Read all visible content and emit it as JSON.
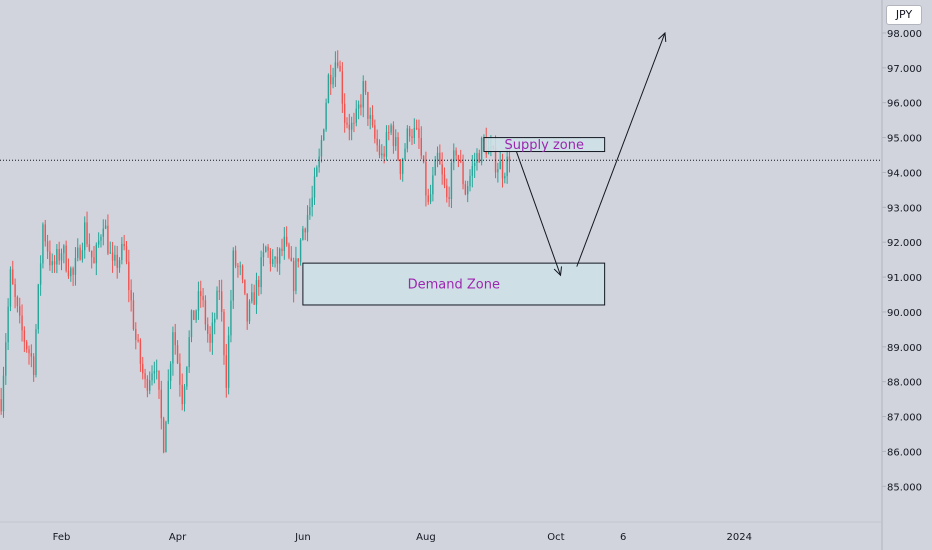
{
  "symbol_badge": "JPY",
  "colors": {
    "background": "#d1d4dc",
    "up_candle": "#26a69a",
    "down_candle": "#ef5350",
    "zone_fill": "#cfe0e8",
    "zone_text": "#9c27b0",
    "axis_text": "#131722",
    "arrow": "#131722"
  },
  "chart_data": {
    "type": "candlestick",
    "y_axis": {
      "min": 84.55,
      "max": 98.2,
      "ticks": [
        "98.000",
        "97.000",
        "96.000",
        "95.000",
        "94.000",
        "93.000",
        "92.000",
        "91.000",
        "90.000",
        "89.000",
        "88.000",
        "87.000",
        "86.000",
        "85.000"
      ],
      "tick_values": [
        98,
        97,
        96,
        95,
        94,
        93,
        92,
        91,
        90,
        89,
        88,
        87,
        86,
        85
      ]
    },
    "x_axis": {
      "labels": [
        "Feb",
        "Apr",
        "Jun",
        "Aug",
        "Oct",
        "6",
        "2024"
      ],
      "label_index": [
        26,
        76,
        130,
        183,
        239,
        268,
        318
      ],
      "total_slots": 380
    },
    "current_price": 94.35,
    "price_path": [
      [
        0,
        87.5
      ],
      [
        4,
        91.0
      ],
      [
        8,
        89.6
      ],
      [
        14,
        88.5
      ],
      [
        18,
        92.5
      ],
      [
        22,
        91.2
      ],
      [
        26,
        91.8
      ],
      [
        31,
        91.0
      ],
      [
        36,
        92.4
      ],
      [
        40,
        91.3
      ],
      [
        44,
        92.7
      ],
      [
        48,
        91.2
      ],
      [
        53,
        91.8
      ],
      [
        58,
        89.2
      ],
      [
        62,
        87.9
      ],
      [
        66,
        88.6
      ],
      [
        70,
        86.3
      ],
      [
        74,
        89.6
      ],
      [
        78,
        87.6
      ],
      [
        82,
        89.7
      ],
      [
        86,
        90.5
      ],
      [
        90,
        89.0
      ],
      [
        94,
        90.7
      ],
      [
        97,
        88.1
      ],
      [
        100,
        91.5
      ],
      [
        103,
        91.1
      ],
      [
        106,
        89.8
      ],
      [
        110,
        90.7
      ],
      [
        114,
        91.8
      ],
      [
        118,
        91.3
      ],
      [
        122,
        91.9
      ],
      [
        126,
        90.9
      ],
      [
        130,
        92.4
      ],
      [
        134,
        93.2
      ],
      [
        137,
        94.3
      ],
      [
        141,
        96.7
      ],
      [
        145,
        97.4
      ],
      [
        148,
        95.6
      ],
      [
        152,
        95.2
      ],
      [
        156,
        96.4
      ],
      [
        160,
        95.1
      ],
      [
        164,
        94.4
      ],
      [
        168,
        95.3
      ],
      [
        172,
        94.2
      ],
      [
        176,
        95.3
      ],
      [
        180,
        94.9
      ],
      [
        184,
        93.0
      ],
      [
        188,
        94.4
      ],
      [
        192,
        93.2
      ],
      [
        196,
        94.7
      ],
      [
        200,
        93.5
      ],
      [
        204,
        94.3
      ],
      [
        208,
        94.9
      ],
      [
        212,
        94.4
      ],
      [
        216,
        94.1
      ],
      [
        219,
        94.35
      ]
    ],
    "zones": [
      {
        "label": "Supply zone",
        "start": 208,
        "end": 260,
        "top": 95.0,
        "bottom": 94.6
      },
      {
        "label": "Demand Zone",
        "start": 130,
        "end": 260,
        "top": 91.4,
        "bottom": 90.2
      }
    ],
    "projection": [
      [
        222,
        94.6
      ],
      [
        241,
        91.05
      ],
      [
        248,
        91.3
      ],
      [
        286,
        98.0
      ]
    ]
  }
}
